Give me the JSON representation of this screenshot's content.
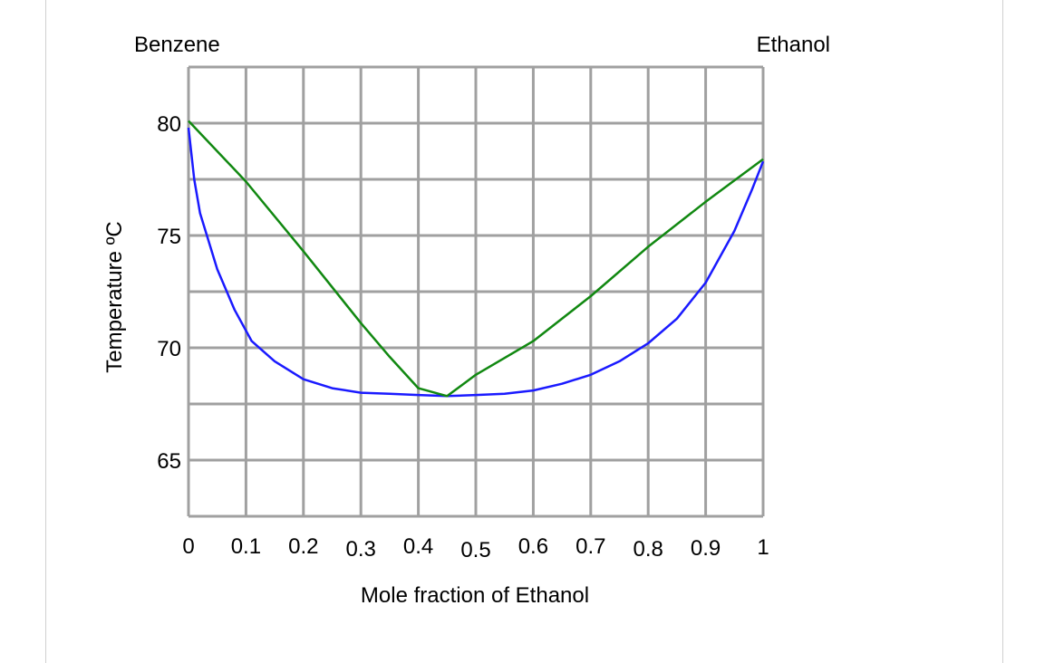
{
  "chart_data": {
    "type": "line",
    "left_end_label": "Benzene",
    "right_end_label": "Ethanol",
    "xlabel": "Mole fraction of Ethanol",
    "ylabel": "Temperature ºC",
    "xlim": [
      0,
      1
    ],
    "ylim": [
      62.5,
      82.5
    ],
    "x_ticks": [
      "0",
      "0.1",
      "0.2",
      "0.3",
      "0.4",
      "0.5",
      "0.6",
      "0.7",
      "0.8",
      "0.9",
      "1"
    ],
    "y_ticks": [
      "65",
      "70",
      "75",
      "80"
    ],
    "grid": true,
    "series": [
      {
        "color": "#1a1aff",
        "points": [
          [
            0.0,
            79.8
          ],
          [
            0.01,
            77.5
          ],
          [
            0.02,
            76.0
          ],
          [
            0.05,
            73.5
          ],
          [
            0.08,
            71.7
          ],
          [
            0.11,
            70.3
          ],
          [
            0.15,
            69.4
          ],
          [
            0.2,
            68.6
          ],
          [
            0.25,
            68.2
          ],
          [
            0.3,
            68.0
          ],
          [
            0.35,
            67.95
          ],
          [
            0.4,
            67.9
          ],
          [
            0.45,
            67.85
          ],
          [
            0.5,
            67.9
          ],
          [
            0.55,
            67.95
          ],
          [
            0.6,
            68.1
          ],
          [
            0.65,
            68.4
          ],
          [
            0.7,
            68.8
          ],
          [
            0.75,
            69.4
          ],
          [
            0.8,
            70.2
          ],
          [
            0.85,
            71.3
          ],
          [
            0.9,
            72.9
          ],
          [
            0.95,
            75.2
          ],
          [
            0.98,
            77.0
          ],
          [
            1.0,
            78.3
          ]
        ]
      },
      {
        "color": "#118811",
        "points": [
          [
            0.0,
            80.1
          ],
          [
            0.1,
            77.4
          ],
          [
            0.2,
            74.3
          ],
          [
            0.3,
            71.1
          ],
          [
            0.35,
            69.6
          ],
          [
            0.4,
            68.2
          ],
          [
            0.45,
            67.85
          ],
          [
            0.5,
            68.8
          ],
          [
            0.6,
            70.3
          ],
          [
            0.7,
            72.3
          ],
          [
            0.8,
            74.5
          ],
          [
            0.9,
            76.5
          ],
          [
            1.0,
            78.4
          ]
        ]
      }
    ]
  }
}
